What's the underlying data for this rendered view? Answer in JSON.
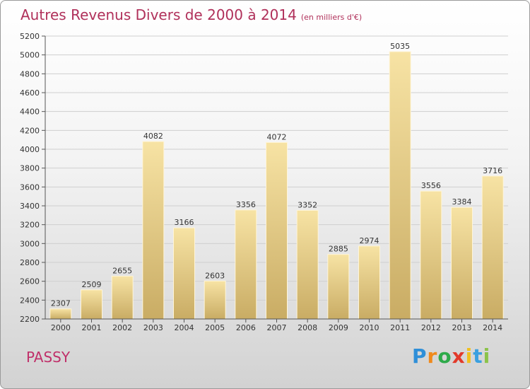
{
  "title": "Autres Revenus Divers de 2000 à 2014",
  "subtitle": "(en milliers d'€)",
  "place": "PASSY",
  "logo": {
    "letters": [
      "P",
      "r",
      "o",
      "x",
      "i",
      "t",
      "i"
    ]
  },
  "colors": {
    "title": "#b0305a",
    "bar_light": "#f7e3a4",
    "bar_dark": "#c9ac64"
  },
  "chart_data": {
    "type": "bar",
    "title": "Autres Revenus Divers de 2000 à 2014",
    "subtitle": "(en milliers d'€)",
    "categories": [
      "2000",
      "2001",
      "2002",
      "2003",
      "2004",
      "2005",
      "2006",
      "2007",
      "2008",
      "2009",
      "2010",
      "2011",
      "2012",
      "2013",
      "2014"
    ],
    "values": [
      2307,
      2509,
      2655,
      4082,
      3166,
      2603,
      3356,
      4072,
      3352,
      2885,
      2974,
      5035,
      3556,
      3384,
      3716
    ],
    "ylim": [
      2200,
      5200
    ],
    "yticks": [
      2200,
      2400,
      2600,
      2800,
      3000,
      3200,
      3400,
      3600,
      3800,
      4000,
      4200,
      4400,
      4600,
      4800,
      5000,
      5200
    ],
    "grid": true,
    "xlabel": "",
    "ylabel": ""
  }
}
